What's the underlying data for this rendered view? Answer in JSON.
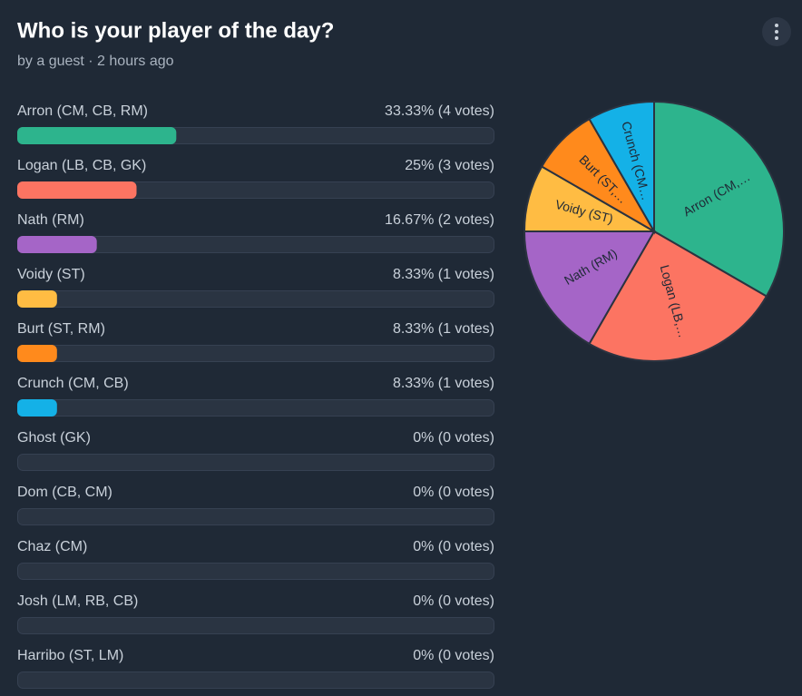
{
  "header": {
    "title": "Who is your player of the day?",
    "byline": "by a guest · 2 hours ago"
  },
  "poll": {
    "options": [
      {
        "name": "Arron (CM, CB, RM)",
        "value": 33.33,
        "value_label": "33.33% (4 votes)",
        "color": "#2db48d"
      },
      {
        "name": "Logan (LB, CB, GK)",
        "value": 25,
        "value_label": "25% (3 votes)",
        "color": "#fc7462"
      },
      {
        "name": "Nath (RM)",
        "value": 16.67,
        "value_label": "16.67% (2 votes)",
        "color": "#a565c7"
      },
      {
        "name": "Voidy (ST)",
        "value": 8.33,
        "value_label": "8.33% (1 votes)",
        "color": "#ffbc43"
      },
      {
        "name": "Burt (ST, RM)",
        "value": 8.33,
        "value_label": "8.33% (1 votes)",
        "color": "#ff8a1c"
      },
      {
        "name": "Crunch (CM, CB)",
        "value": 8.33,
        "value_label": "8.33% (1 votes)",
        "color": "#14b1e7"
      },
      {
        "name": "Ghost (GK)",
        "value": 0,
        "value_label": "0% (0 votes)",
        "color": "#2db48d"
      },
      {
        "name": "Dom (CB, CM)",
        "value": 0,
        "value_label": "0% (0 votes)",
        "color": "#2db48d"
      },
      {
        "name": "Chaz (CM)",
        "value": 0,
        "value_label": "0% (0 votes)",
        "color": "#2db48d"
      },
      {
        "name": "Josh (LM, RB, CB)",
        "value": 0,
        "value_label": "0% (0 votes)",
        "color": "#2db48d"
      },
      {
        "name": "Harribo (ST, LM)",
        "value": 0,
        "value_label": "0% (0 votes)",
        "color": "#2db48d"
      }
    ]
  },
  "chart_data": {
    "type": "pie",
    "categories": [
      "Arron (CM,…",
      "Logan (LB,…",
      "Nath (RM)",
      "Voidy (ST)",
      "Burt (ST,…",
      "Crunch (CM…"
    ],
    "values": [
      33.33,
      25,
      16.67,
      8.33,
      8.33,
      8.33
    ],
    "colors": [
      "#2db48d",
      "#fc7462",
      "#a565c7",
      "#ffbc43",
      "#ff8a1c",
      "#14b1e7"
    ]
  }
}
